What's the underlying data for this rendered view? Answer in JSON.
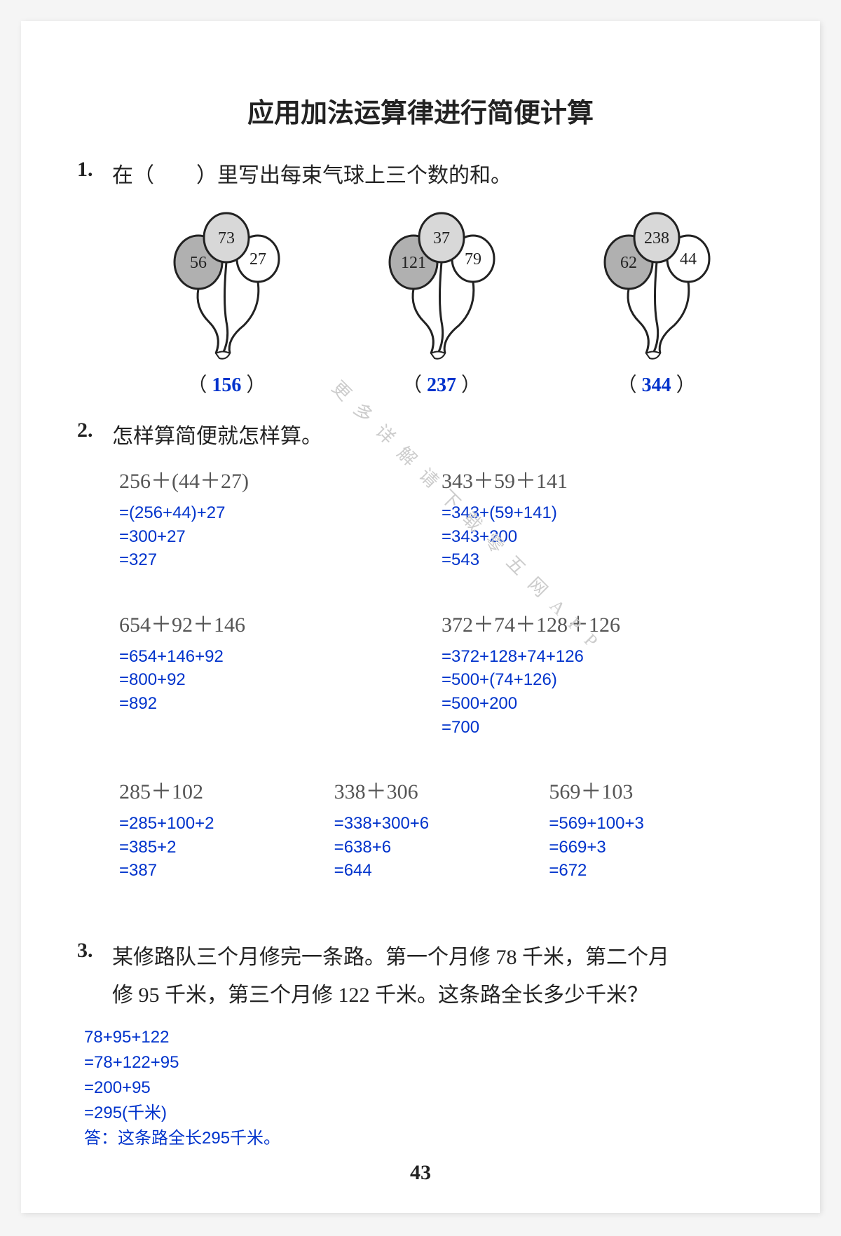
{
  "title": "应用加法运算律进行简便计算",
  "q1": {
    "num": "1.",
    "text": "在（　　）里写出每束气球上三个数的和。",
    "balloons": [
      {
        "nums": [
          "56",
          "73",
          "27"
        ],
        "answer": "156"
      },
      {
        "nums": [
          "121",
          "37",
          "79"
        ],
        "answer": "237"
      },
      {
        "nums": [
          "62",
          "238",
          "44"
        ],
        "answer": "344"
      }
    ]
  },
  "q2": {
    "num": "2.",
    "text": "怎样算简便就怎样算。",
    "row1": [
      {
        "expr": "256＋(44＋27)",
        "steps": [
          "=(256+44)+27",
          "=300+27",
          "=327"
        ]
      },
      {
        "expr": "343＋59＋141",
        "steps": [
          "=343+(59+141)",
          "=343+200",
          "=543"
        ]
      }
    ],
    "row2": [
      {
        "expr": "654＋92＋146",
        "steps": [
          "=654+146+92",
          "=800+92",
          "=892"
        ]
      },
      {
        "expr": "372＋74＋128＋126",
        "steps": [
          "=372+128+74+126",
          "=500+(74+126)",
          "=500+200",
          "=700"
        ]
      }
    ],
    "row3": [
      {
        "expr": "285＋102",
        "steps": [
          "=285+100+2",
          "=385+2",
          "=387"
        ]
      },
      {
        "expr": "338＋306",
        "steps": [
          "=338+300+6",
          "=638+6",
          "=644"
        ]
      },
      {
        "expr": "569＋103",
        "steps": [
          "=569+100+3",
          "=669+3",
          "=672"
        ]
      }
    ]
  },
  "q3": {
    "num": "3.",
    "line1": "某修路队三个月修完一条路。第一个月修 78 千米，第二个月",
    "line2": "修 95 千米，第三个月修 122 千米。这条路全长多少千米？",
    "work": [
      "78+95+122",
      "=78+122+95",
      "=200+95",
      "=295(千米)",
      "答：这条路全长295千米。"
    ]
  },
  "pageNum": "43",
  "watermark": "更多详解请下载零五网APP",
  "balloonStyle": {
    "fillLight": "#d8d8d8",
    "fillDark": "#b0b0b0",
    "stroke": "#222",
    "textColor": "#222"
  }
}
